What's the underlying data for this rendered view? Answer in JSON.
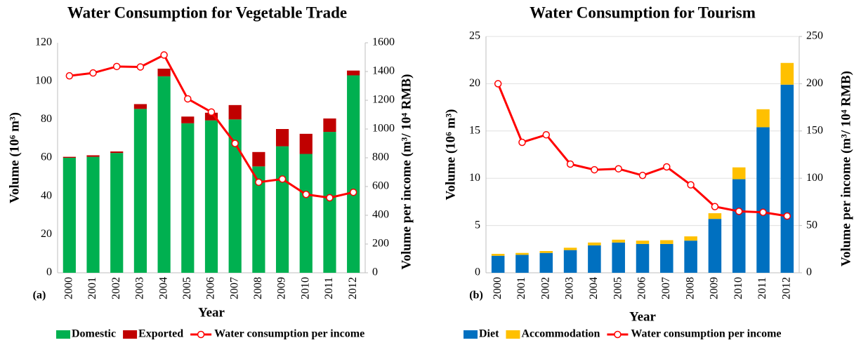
{
  "chart_data": [
    {
      "type": "bar",
      "title": "Water Consumption for Vegetable  Trade",
      "panel_label": "(a)",
      "x_label": "Year",
      "y_label": "Volume (10⁶ m³)",
      "y2_label": "Volume per income (m³/ 10⁴ RMB)",
      "categories": [
        "2000",
        "2001",
        "2002",
        "2003",
        "2004",
        "2005",
        "2006",
        "2007",
        "2008",
        "2009",
        "2010",
        "2011",
        "2012"
      ],
      "stacked": true,
      "grid": false,
      "legend": "bottom",
      "ylim": [
        0,
        120
      ],
      "yticks": [
        0,
        20,
        40,
        60,
        80,
        100,
        120
      ],
      "y2lim": [
        0,
        1600
      ],
      "y2ticks": [
        0,
        200,
        400,
        600,
        800,
        1000,
        1200,
        1400,
        1600
      ],
      "series": [
        {
          "name": "Domestic",
          "type": "bar",
          "color": "#00b050",
          "values": [
            60,
            60.5,
            62.5,
            85.5,
            102.5,
            78,
            79.5,
            80,
            55.5,
            66,
            62,
            73.5,
            103
          ]
        },
        {
          "name": "Exported",
          "type": "bar",
          "color": "#c00000",
          "values": [
            0.5,
            0.8,
            0.8,
            2.5,
            4,
            3.5,
            4,
            7.5,
            7.5,
            9,
            10.5,
            7,
            2.5
          ]
        },
        {
          "name": "Water consumption per income",
          "type": "line",
          "axis": "y2",
          "color": "#ff0000",
          "values": [
            1370,
            1390,
            1435,
            1432,
            1515,
            1210,
            1118,
            900,
            630,
            652,
            545,
            522,
            560
          ]
        }
      ]
    },
    {
      "type": "bar",
      "title": "Water Consumption for Tourism",
      "panel_label": "(b)",
      "x_label": "Year",
      "y_label": "Volume (10⁶ m³)",
      "y2_label": "Volume per income (m³/ 10⁴ RMB)",
      "categories": [
        "2000",
        "2001",
        "2002",
        "2003",
        "2004",
        "2005",
        "2006",
        "2007",
        "2008",
        "2009",
        "2010",
        "2011",
        "2012"
      ],
      "stacked": true,
      "grid": true,
      "legend": "bottom",
      "ylim": [
        0,
        25
      ],
      "yticks": [
        0,
        5,
        10,
        15,
        20,
        25
      ],
      "y2lim": [
        0,
        250
      ],
      "y2ticks": [
        0,
        50,
        100,
        150,
        200,
        250
      ],
      "series": [
        {
          "name": "Diet",
          "type": "bar",
          "color": "#0070c0",
          "values": [
            1.8,
            1.9,
            2.1,
            2.4,
            2.9,
            3.2,
            3.05,
            3.05,
            3.4,
            5.7,
            9.9,
            15.4,
            19.9
          ]
        },
        {
          "name": "Accommodation",
          "type": "bar",
          "color": "#ffc000",
          "values": [
            0.2,
            0.2,
            0.2,
            0.25,
            0.3,
            0.3,
            0.35,
            0.4,
            0.45,
            0.6,
            1.25,
            1.9,
            2.3
          ]
        },
        {
          "name": "Water consumption per income",
          "type": "line",
          "axis": "y2",
          "color": "#ff0000",
          "values": [
            200,
            138,
            146,
            115,
            109,
            110,
            103,
            112,
            93,
            70,
            65,
            64,
            60
          ]
        }
      ]
    }
  ]
}
